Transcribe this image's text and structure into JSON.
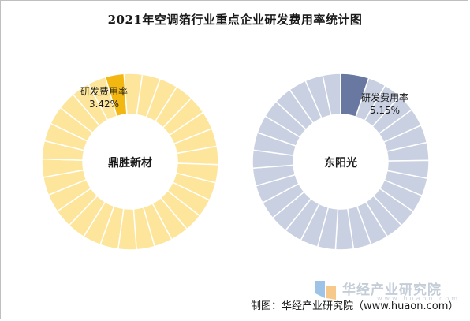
{
  "chart_data": {
    "type": "pie",
    "title": "2021年空调箔行业重点企业研发费用率统计图",
    "charts": [
      {
        "company": "鼎胜新材",
        "series_label": "研发费用率",
        "value": 3.42,
        "value_label": "3.42%",
        "highlight_color": "#f2b711",
        "base_color": "#fde69b"
      },
      {
        "company": "东阳光",
        "series_label": "研发费用率",
        "value": 5.15,
        "value_label": "5.15%",
        "highlight_color": "#6878a0",
        "base_color": "#c9d0e1"
      }
    ]
  },
  "footer": {
    "source": "制图：华经产业研究院（www.huaon.com）"
  },
  "watermark": {
    "text": "华经产业研究院",
    "url": "www.huaon.com",
    "colors": [
      "#9dc3e6",
      "#f6c98a"
    ]
  }
}
